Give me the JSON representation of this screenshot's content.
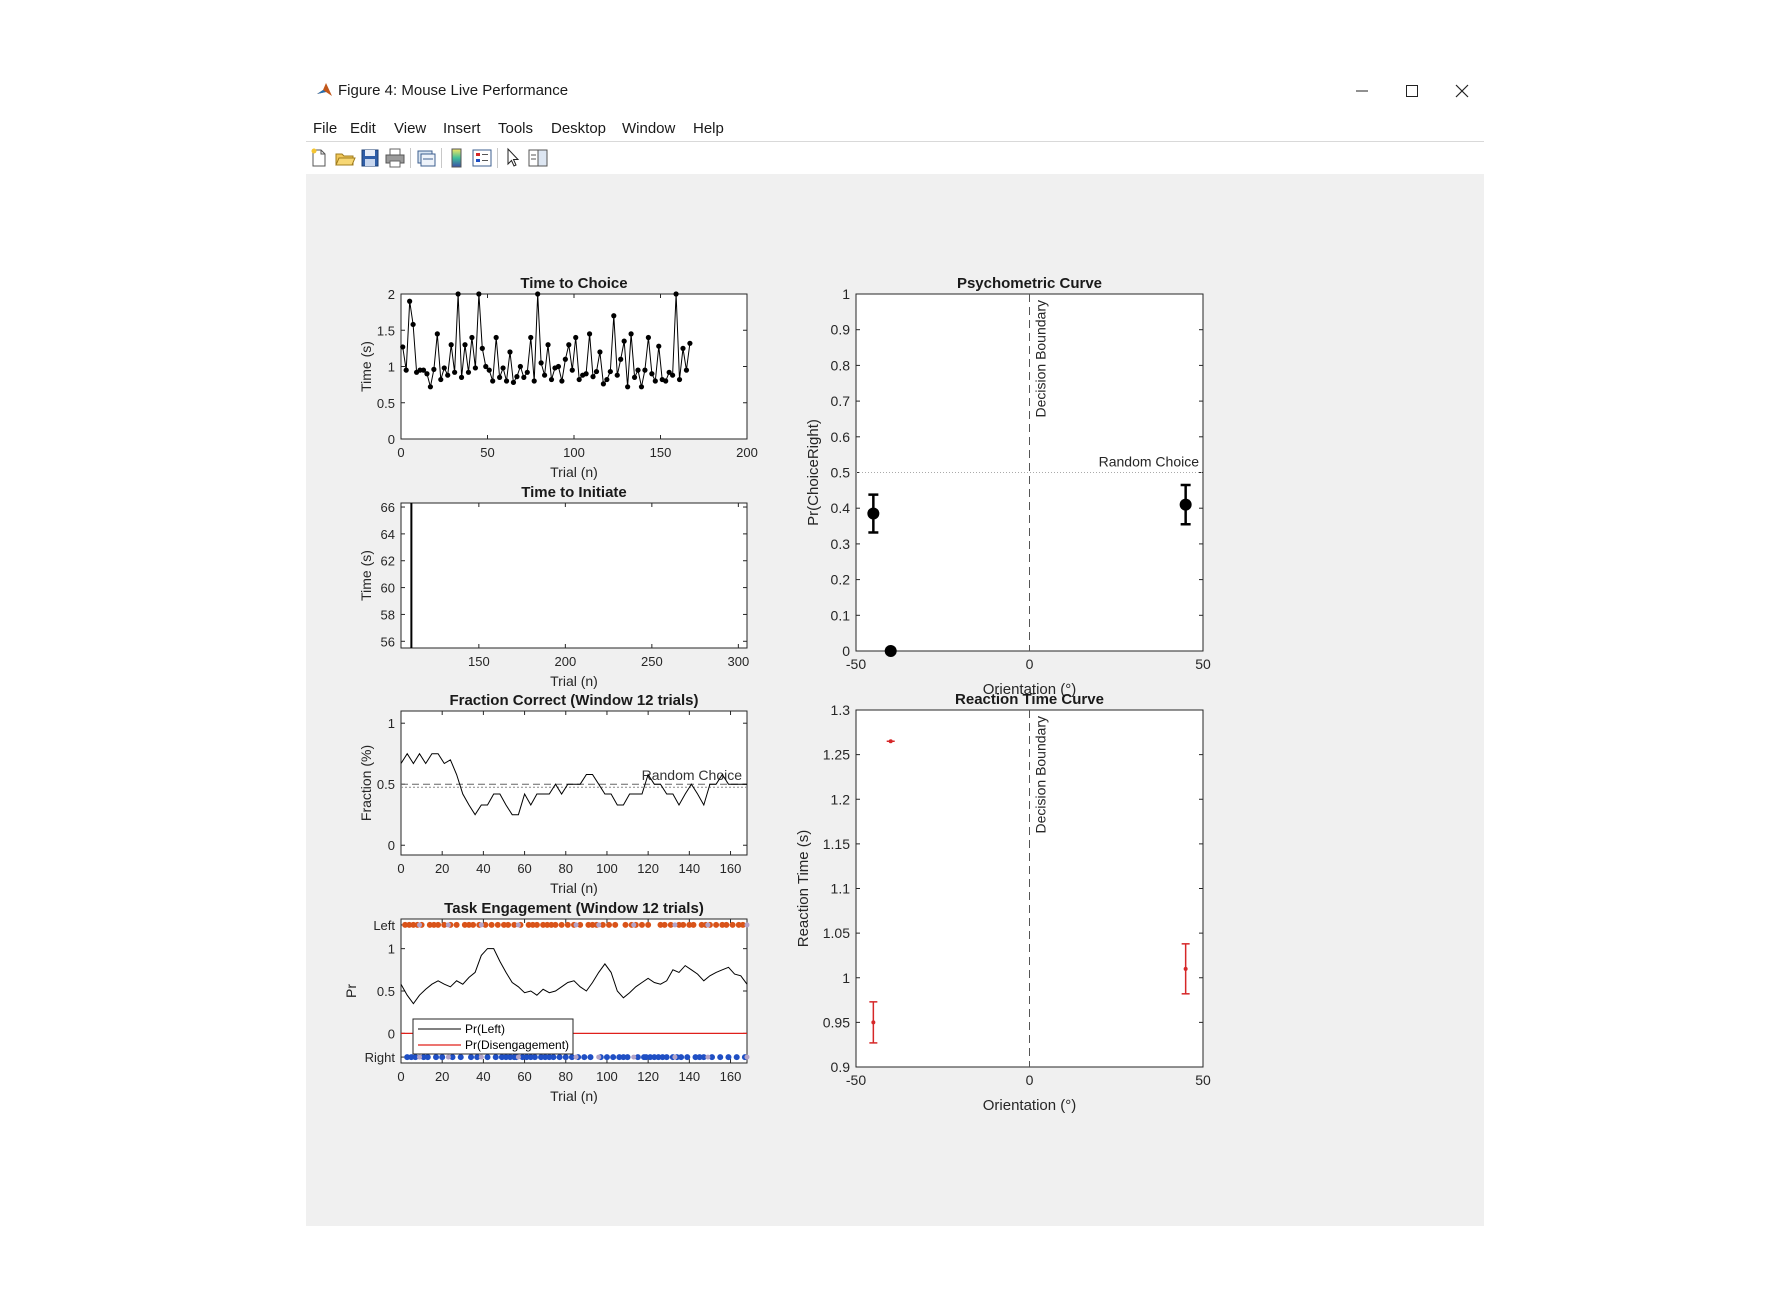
{
  "window": {
    "title": "Figure 4: Mouse Live Performance"
  },
  "menu": [
    "File",
    "Edit",
    "View",
    "Insert",
    "Tools",
    "Desktop",
    "Window",
    "Help"
  ],
  "toolbar": {
    "buttons": [
      "new-figure-icon",
      "open-icon",
      "save-icon",
      "print-icon",
      "link-icon",
      "colorbar-icon",
      "legend-icon",
      "pointer-icon",
      "property-editor-icon"
    ]
  },
  "colors": {
    "figure_bg": "#f0f0f0",
    "left_marker": "#d95319",
    "right_marker": "#1f4fc4",
    "disengage_marker": "#b3a3c7",
    "rt_color": "#d62728"
  },
  "chart_data": [
    {
      "id": "time-to-choice",
      "type": "line",
      "title": "Time to Choice",
      "xlabel": "Trial (n)",
      "ylabel": "Time (s)",
      "xlim": [
        0,
        200
      ],
      "ylim": [
        0,
        2
      ],
      "xticks": [
        0,
        50,
        100,
        150,
        200
      ],
      "yticks": [
        "0",
        "0.5",
        "1",
        "1.5",
        "2"
      ],
      "x": [
        1,
        3,
        5,
        7,
        9,
        11,
        13,
        15,
        17,
        19,
        21,
        23,
        25,
        27,
        29,
        31,
        33,
        35,
        37,
        39,
        41,
        43,
        45,
        47,
        49,
        51,
        53,
        55,
        57,
        59,
        61,
        63,
        65,
        67,
        69,
        71,
        73,
        75,
        77,
        79,
        81,
        83,
        85,
        87,
        89,
        91,
        93,
        95,
        97,
        99,
        101,
        103,
        105,
        107,
        109,
        111,
        113,
        115,
        117,
        119,
        121,
        123,
        125,
        127,
        129,
        131,
        133,
        135,
        137,
        139,
        141,
        143,
        145,
        147,
        149,
        151,
        153,
        155,
        157,
        159,
        161,
        163,
        165,
        167
      ],
      "values": [
        1.27,
        0.95,
        1.9,
        1.58,
        0.92,
        0.95,
        0.95,
        0.9,
        0.72,
        0.96,
        1.45,
        0.82,
        0.98,
        0.88,
        1.3,
        0.92,
        2.0,
        0.85,
        1.3,
        0.92,
        1.4,
        0.98,
        2.1,
        1.25,
        1.0,
        0.95,
        0.8,
        1.4,
        0.85,
        0.98,
        0.8,
        1.2,
        0.78,
        0.86,
        1.0,
        0.85,
        0.92,
        1.4,
        0.8,
        2.0,
        1.05,
        0.88,
        1.3,
        0.82,
        0.98,
        1.0,
        0.8,
        1.1,
        1.3,
        0.95,
        1.4,
        0.82,
        0.88,
        0.9,
        1.45,
        0.86,
        0.93,
        1.2,
        0.76,
        0.82,
        0.93,
        1.7,
        0.88,
        1.1,
        1.35,
        0.72,
        1.45,
        0.85,
        0.95,
        0.72,
        0.95,
        1.4,
        0.9,
        0.8,
        1.28,
        0.82,
        0.8,
        0.92,
        0.88,
        2.0,
        0.82,
        1.25,
        0.95,
        1.32
      ]
    },
    {
      "id": "time-to-initiate",
      "type": "line",
      "title": "Time to Initiate",
      "xlabel": "Trial (n)",
      "ylabel": "Time (s)",
      "xlim": [
        105,
        305
      ],
      "ylim": [
        55.5,
        66.3
      ],
      "xticks": [
        150,
        200,
        250,
        300
      ],
      "yticks": [
        "56",
        "58",
        "60",
        "62",
        "64",
        "66"
      ],
      "x": [
        111,
        111
      ],
      "values": [
        55.5,
        66.3
      ]
    },
    {
      "id": "fraction-correct",
      "type": "line",
      "title": "Fraction Correct (Window 12 trials)",
      "xlabel": "Trial (n)",
      "ylabel": "Fraction (%)",
      "xlim": [
        0,
        168
      ],
      "ylim": [
        -0.08,
        1.1
      ],
      "xticks": [
        0,
        20,
        40,
        60,
        80,
        100,
        120,
        140,
        160
      ],
      "yticks": [
        "0",
        "0.5",
        "1"
      ],
      "annotation": "Random Choice",
      "x": [
        0,
        3,
        6,
        9,
        12,
        15,
        18,
        21,
        24,
        27,
        30,
        33,
        36,
        39,
        42,
        45,
        48,
        51,
        54,
        57,
        60,
        63,
        66,
        69,
        72,
        75,
        78,
        81,
        84,
        87,
        90,
        93,
        96,
        99,
        102,
        105,
        108,
        111,
        114,
        117,
        120,
        123,
        126,
        129,
        132,
        135,
        138,
        141,
        144,
        147,
        150,
        153,
        156,
        159,
        162,
        165,
        168
      ],
      "values": [
        0.67,
        0.75,
        0.67,
        0.75,
        0.67,
        0.75,
        0.75,
        0.67,
        0.7,
        0.58,
        0.42,
        0.33,
        0.25,
        0.33,
        0.33,
        0.42,
        0.42,
        0.33,
        0.25,
        0.25,
        0.42,
        0.33,
        0.42,
        0.42,
        0.42,
        0.5,
        0.42,
        0.5,
        0.5,
        0.5,
        0.58,
        0.58,
        0.5,
        0.42,
        0.42,
        0.33,
        0.33,
        0.42,
        0.42,
        0.42,
        0.58,
        0.5,
        0.5,
        0.42,
        0.42,
        0.33,
        0.42,
        0.5,
        0.42,
        0.33,
        0.5,
        0.5,
        0.58,
        0.5,
        0.5,
        0.5,
        0.5
      ]
    },
    {
      "id": "task-engagement",
      "type": "line",
      "title": "Task Engagement (Window 12 trials)",
      "xlabel": "Trial (n)",
      "ylabel": "Pr",
      "xlim": [
        0,
        168
      ],
      "ylim": [
        -0.35,
        1.35
      ],
      "xticks": [
        0,
        20,
        40,
        60,
        80,
        100,
        120,
        140,
        160
      ],
      "yticks": [
        "Right",
        "0",
        "0.5",
        "1",
        "Left"
      ],
      "series": [
        {
          "name": "Pr(Left)",
          "x": [
            0,
            3,
            6,
            9,
            12,
            15,
            18,
            21,
            24,
            27,
            30,
            33,
            36,
            39,
            42,
            45,
            48,
            51,
            54,
            57,
            60,
            63,
            66,
            69,
            72,
            75,
            78,
            81,
            84,
            87,
            90,
            93,
            96,
            99,
            102,
            105,
            108,
            111,
            114,
            117,
            120,
            123,
            126,
            129,
            132,
            135,
            138,
            141,
            144,
            147,
            150,
            153,
            156,
            159,
            162,
            165,
            168
          ],
          "values": [
            0.58,
            0.45,
            0.35,
            0.45,
            0.52,
            0.58,
            0.62,
            0.58,
            0.55,
            0.62,
            0.58,
            0.66,
            0.72,
            0.92,
            1.0,
            1.0,
            0.85,
            0.72,
            0.6,
            0.55,
            0.48,
            0.5,
            0.45,
            0.52,
            0.48,
            0.5,
            0.55,
            0.6,
            0.62,
            0.55,
            0.5,
            0.6,
            0.72,
            0.82,
            0.72,
            0.5,
            0.42,
            0.48,
            0.55,
            0.6,
            0.65,
            0.6,
            0.58,
            0.62,
            0.75,
            0.72,
            0.8,
            0.75,
            0.7,
            0.62,
            0.68,
            0.72,
            0.75,
            0.78,
            0.7,
            0.68,
            0.58
          ]
        },
        {
          "name": "Pr(Disengagement)",
          "x": [
            0,
            168
          ],
          "values": [
            0,
            0
          ]
        }
      ],
      "left_trials": [
        2,
        4,
        6,
        8,
        10,
        14,
        16,
        18,
        21,
        24,
        27,
        31,
        33,
        35,
        38,
        41,
        44,
        47,
        50,
        52,
        55,
        58,
        62,
        64,
        66,
        69,
        71,
        73,
        75,
        78,
        81,
        84,
        87,
        91,
        93,
        95,
        98,
        101,
        104,
        109,
        112,
        114,
        117,
        120,
        126,
        128,
        131,
        135,
        137,
        140,
        142,
        146,
        148,
        150,
        153,
        156,
        158,
        161,
        164,
        166
      ],
      "right_trials": [
        3,
        5,
        7,
        11,
        13,
        17,
        20,
        25,
        29,
        34,
        37,
        42,
        46,
        49,
        51,
        53,
        55,
        56,
        59,
        61,
        63,
        65,
        68,
        70,
        72,
        74,
        77,
        80,
        83,
        86,
        89,
        92,
        97,
        100,
        103,
        106,
        108,
        110,
        115,
        118,
        119,
        121,
        123,
        125,
        127,
        129,
        132,
        134,
        136,
        139,
        143,
        145,
        147,
        151,
        155,
        159,
        163,
        167
      ],
      "disengage_trials": [
        9,
        23,
        39,
        57,
        85,
        96,
        113,
        133,
        149,
        168
      ]
    },
    {
      "id": "psychometric-curve",
      "type": "scatter",
      "title": "Psychometric Curve",
      "xlabel": "Orientation (°)",
      "ylabel": "Pr(ChoiceRight)",
      "xlim": [
        -50,
        50
      ],
      "ylim": [
        0,
        1
      ],
      "xticks": [
        -50,
        0,
        50
      ],
      "yticks": [
        "0",
        "0.1",
        "0.2",
        "0.3",
        "0.4",
        "0.5",
        "0.6",
        "0.7",
        "0.8",
        "0.9",
        "1"
      ],
      "annotations": [
        "Decision Boundary",
        "Random Choice"
      ],
      "points": [
        {
          "x": -45,
          "y": 0.385,
          "err": 0.053
        },
        {
          "x": -40,
          "y": 0.0,
          "err": 0
        },
        {
          "x": 45,
          "y": 0.41,
          "err": 0.055
        }
      ]
    },
    {
      "id": "reaction-time-curve",
      "type": "scatter",
      "title": "Reaction Time Curve",
      "xlabel": "Orientation (°)",
      "ylabel": "Reaction Time (s)",
      "xlim": [
        -50,
        50
      ],
      "ylim": [
        0.9,
        1.3
      ],
      "xticks": [
        -50,
        0,
        50
      ],
      "yticks": [
        "0.9",
        "0.95",
        "1",
        "1.05",
        "1.1",
        "1.15",
        "1.2",
        "1.25",
        "1.3"
      ],
      "annotations": [
        "Decision Boundary"
      ],
      "points": [
        {
          "x": -45,
          "y": 0.95,
          "err": 0.023
        },
        {
          "x": -40,
          "y": 1.265,
          "err": 0
        },
        {
          "x": 45,
          "y": 1.01,
          "err": 0.028
        }
      ]
    }
  ]
}
